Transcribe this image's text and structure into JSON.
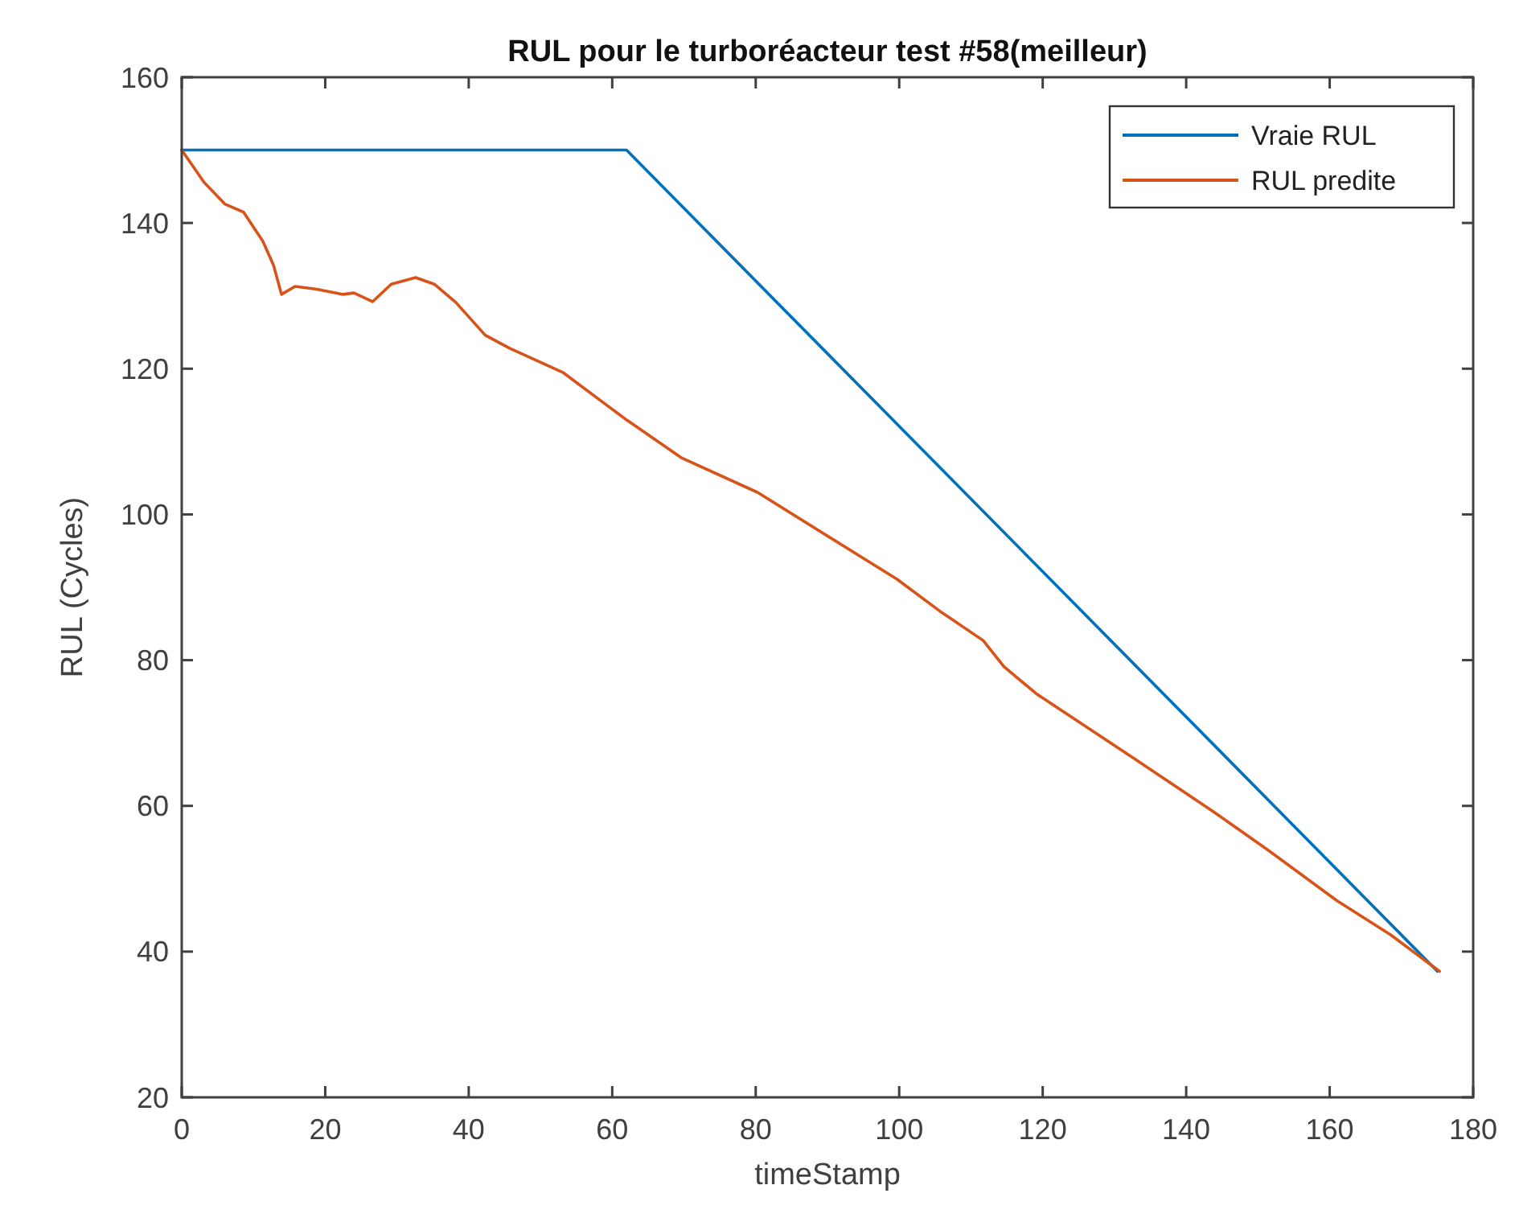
{
  "chart_data": {
    "type": "line",
    "title": "RUL pour le turboréacteur test #58(meilleur)",
    "xlabel": "timeStamp",
    "ylabel": "RUL (Cycles)",
    "xlim": [
      0,
      180
    ],
    "xticks": [
      0,
      20,
      40,
      60,
      80,
      100,
      120,
      140,
      160,
      180
    ],
    "ylim": [
      20,
      160
    ],
    "yticks": [
      20,
      40,
      60,
      80,
      100,
      120,
      140,
      160
    ],
    "grid": false,
    "legend": "top right",
    "line_style": "solid",
    "marker": "none",
    "series": [
      {
        "name": "Vraie RUL",
        "color": "#0072bd",
        "x": [
          0,
          62,
          175
        ],
        "values": [
          150,
          150,
          37.3
        ]
      },
      {
        "name": "RUL predite",
        "color": "#d95319",
        "x": [
          0,
          3.1,
          6,
          8.6,
          11.3,
          12.8,
          13.9,
          15.8,
          18.8,
          22.5,
          24,
          26.6,
          29.2,
          32.6,
          35.2,
          38.2,
          42.3,
          45.7,
          53.1,
          62.1,
          69.6,
          80.3,
          99.7,
          105.7,
          111.7,
          114.6,
          119.1,
          132.6,
          143.8,
          151.3,
          161,
          168.5,
          175.3
        ],
        "values": [
          150,
          145.6,
          142.6,
          141.5,
          137.5,
          134.2,
          130.2,
          131.3,
          130.9,
          130.2,
          130.4,
          129.2,
          131.6,
          132.5,
          131.6,
          129.1,
          124.6,
          122.8,
          119.5,
          112.9,
          107.8,
          103,
          91.1,
          86.7,
          82.7,
          79.1,
          75.4,
          66.6,
          59.2,
          54,
          47,
          42.3,
          37.3
        ]
      }
    ]
  }
}
